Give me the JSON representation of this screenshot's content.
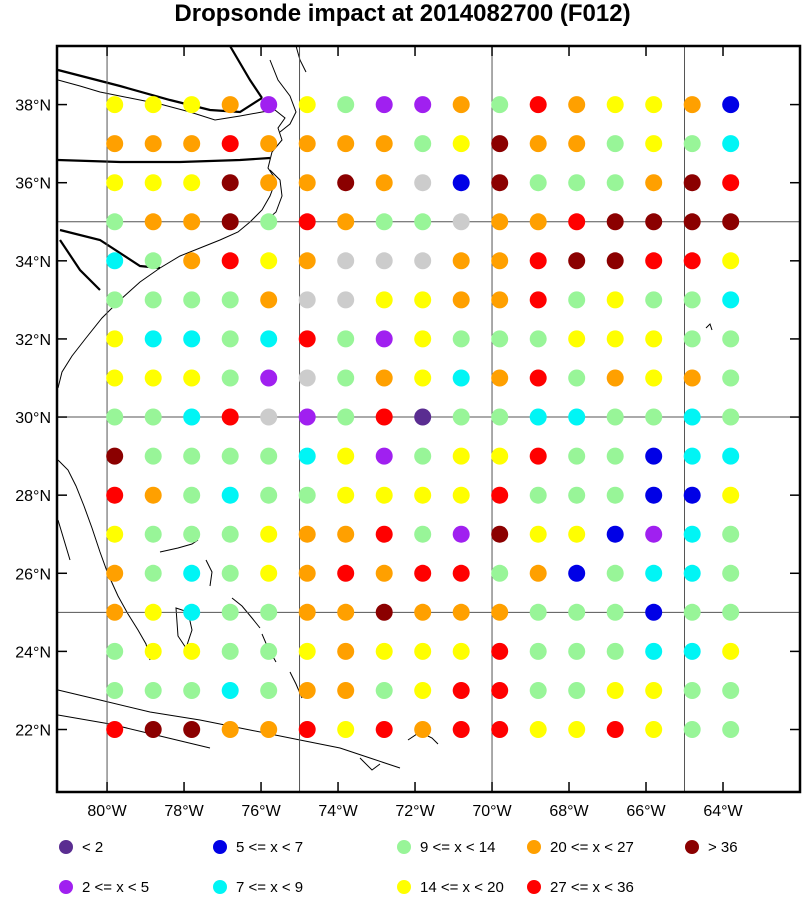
{
  "chart_data": {
    "type": "scatter",
    "title": "Dropsonde impact at 2014082700 (F012)",
    "xlabel": "",
    "ylabel": "",
    "xlim": [
      -81.3,
      -62.0
    ],
    "ylim": [
      20.4,
      39.5
    ],
    "x_ticks": [
      {
        "value": -80,
        "label": "80°W"
      },
      {
        "value": -78,
        "label": "78°W"
      },
      {
        "value": -76,
        "label": "76°W"
      },
      {
        "value": -74,
        "label": "74°W"
      },
      {
        "value": -72,
        "label": "72°W"
      },
      {
        "value": -70,
        "label": "70°W"
      },
      {
        "value": -68,
        "label": "68°W"
      },
      {
        "value": -66,
        "label": "66°W"
      },
      {
        "value": -64,
        "label": "64°W"
      }
    ],
    "y_ticks": [
      {
        "value": 38,
        "label": "38°N"
      },
      {
        "value": 36,
        "label": "36°N"
      },
      {
        "value": 34,
        "label": "34°N"
      },
      {
        "value": 32,
        "label": "32°N"
      },
      {
        "value": 30,
        "label": "30°N"
      },
      {
        "value": 28,
        "label": "28°N"
      },
      {
        "value": 26,
        "label": "26°N"
      },
      {
        "value": 24,
        "label": "24°N"
      },
      {
        "value": 22,
        "label": "22°N"
      }
    ],
    "grid": {
      "lon_lines": [
        -80,
        -75,
        -70,
        -65
      ],
      "lat_lines": [
        35,
        30,
        25
      ]
    },
    "x": [
      -79.8,
      -78.8,
      -77.8,
      -76.8,
      -75.8,
      -74.8,
      -73.8,
      -72.8,
      -71.8,
      -70.8,
      -69.8,
      -68.8,
      -67.8,
      -66.8,
      -65.8,
      -64.8,
      -63.8
    ],
    "y": [
      38,
      37,
      36,
      35,
      34,
      33,
      32,
      31,
      30,
      29,
      28,
      27,
      26,
      25,
      24,
      23,
      22
    ],
    "class_grid": [
      "DDDFEDGEEFGHFDDFC",
      "FFFHFFFFGDIFFGDGA",
      "DDDIFFIFBCIGGGFIH",
      "GFFIGHFGGBFFHIIII",
      "AGFHDFBBBFFHIIHHD",
      "GGGGFBBDDFFHGDGGA",
      "DAAGAHGEDGGGDDDGG",
      "DDDGEBGFDAFHGFDFG",
      "GGAHBEGHJGGAAGGAG",
      "IGGGGADEGDDHGGCAA",
      "HFGAGGDDDDHGGGCCD",
      "DGGGDFFHGEIDDCEAG",
      "FGAGDFHFHHGFCGAAG",
      "FDAGGFFIFFFGGGCGG",
      "GDDGGDFDDDHGGGAAD",
      "GGGAGFFGDHHGGDDGG",
      "HIIFFHDHFHHDDHDGG"
    ],
    "classes": [
      {
        "code": "J",
        "legend": "<  2",
        "color": "#5a2d91"
      },
      {
        "code": "E",
        "legend": "2 <= x <  5",
        "color": "#a020f0"
      },
      {
        "code": "C",
        "legend": "5 <= x <  7",
        "color": "#0000e6"
      },
      {
        "code": "A",
        "legend": "7 <= x <  9",
        "color": "#00f5f5"
      },
      {
        "code": "G",
        "legend": "9 <= x < 14",
        "color": "#98f598"
      },
      {
        "code": "D",
        "legend": "14 <= x < 20",
        "color": "#ffff00"
      },
      {
        "code": "F",
        "legend": "20 <= x < 27",
        "color": "#ffa000"
      },
      {
        "code": "H",
        "legend": "27 <= x < 36",
        "color": "#ff0000"
      },
      {
        "code": "I",
        "legend": "> 36",
        "color": "#8b0000"
      }
    ],
    "legend_layout": [
      [
        "J",
        "C",
        "G",
        "F",
        "I"
      ],
      [
        "E",
        "A",
        "D",
        "H"
      ]
    ],
    "legend_placement": "bottom"
  }
}
